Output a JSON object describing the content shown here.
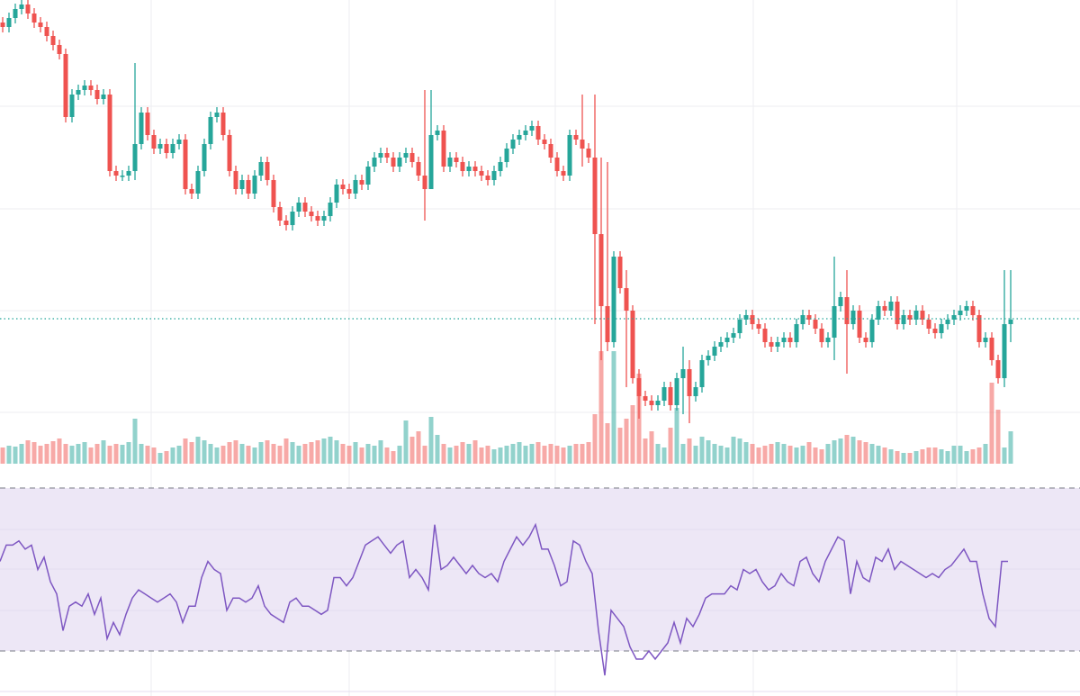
{
  "chart_data": {
    "type": "candlestick",
    "title": "",
    "colors": {
      "up": "#26a69a",
      "down": "#ef5350",
      "rsi_line": "#7e57c2",
      "rsi_band": "#ede7f6",
      "grid": "#eeeef2",
      "last_price_line": "#26a69a"
    },
    "price_range": [
      0,
      100
    ],
    "wick_pad": 1.2,
    "close": [
      94,
      96,
      98,
      99,
      97,
      95,
      94,
      92,
      90,
      88,
      74,
      79,
      80,
      81,
      80,
      78,
      79,
      62,
      61,
      61,
      62,
      68,
      75,
      70,
      67,
      68,
      66,
      68,
      69,
      58,
      57,
      62,
      68,
      74,
      75,
      70,
      62,
      58,
      60,
      57,
      61,
      64,
      60,
      54,
      51,
      50,
      53,
      55,
      53,
      52,
      51,
      52,
      55,
      59,
      58,
      57,
      60,
      59,
      63,
      65,
      66,
      65,
      63,
      65,
      66,
      64,
      61,
      58,
      70,
      71,
      63,
      65,
      64,
      62,
      63,
      62,
      61,
      60,
      62,
      64,
      67,
      69,
      70,
      71,
      72,
      69,
      68,
      65,
      62,
      61,
      70,
      69,
      67,
      65,
      48,
      32,
      24,
      43,
      36,
      31,
      16,
      12,
      11,
      10,
      11,
      14,
      10,
      16,
      18,
      12,
      14,
      20,
      21,
      23,
      24,
      25,
      26,
      29,
      30,
      28,
      27,
      24,
      23,
      24,
      25,
      24,
      28,
      30,
      29,
      27,
      24,
      25,
      32,
      34,
      28,
      31,
      25,
      24,
      29,
      32,
      31,
      33,
      28,
      30,
      29,
      31,
      29,
      27,
      26,
      28,
      29,
      30,
      31,
      32,
      30,
      24,
      25,
      20,
      16,
      28,
      29
    ],
    "big_wicks": [
      {
        "i": 21,
        "high": 86,
        "low": 60
      },
      {
        "i": 67,
        "high": 80,
        "low": 51
      },
      {
        "i": 68,
        "high": 80,
        "low": 65
      },
      {
        "i": 92,
        "high": 79,
        "low": 63
      },
      {
        "i": 94,
        "high": 79,
        "low": 28
      },
      {
        "i": 95,
        "high": 65,
        "low": 20
      },
      {
        "i": 96,
        "high": 64,
        "low": 22
      },
      {
        "i": 99,
        "high": 40,
        "low": 14
      },
      {
        "i": 101,
        "high": 18,
        "low": 7
      },
      {
        "i": 108,
        "high": 23,
        "low": 8
      },
      {
        "i": 109,
        "high": 20,
        "low": 6
      },
      {
        "i": 132,
        "high": 43,
        "low": 20
      },
      {
        "i": 134,
        "high": 40,
        "low": 17
      },
      {
        "i": 159,
        "high": 40,
        "low": 14
      },
      {
        "i": 160,
        "high": 40,
        "low": 24
      }
    ],
    "volume": [
      18,
      20,
      19,
      22,
      26,
      24,
      20,
      22,
      25,
      28,
      22,
      20,
      22,
      24,
      18,
      22,
      26,
      20,
      22,
      21,
      24,
      50,
      22,
      20,
      18,
      12,
      14,
      18,
      20,
      28,
      24,
      30,
      26,
      22,
      18,
      20,
      24,
      26,
      22,
      20,
      18,
      24,
      26,
      22,
      20,
      28,
      24,
      20,
      22,
      24,
      26,
      28,
      30,
      26,
      22,
      20,
      24,
      18,
      22,
      20,
      26,
      18,
      14,
      20,
      48,
      30,
      36,
      20,
      52,
      32,
      22,
      18,
      20,
      24,
      22,
      26,
      18,
      20,
      16,
      18,
      20,
      22,
      24,
      20,
      22,
      24,
      20,
      22,
      20,
      18,
      20,
      22,
      22,
      24,
      55,
      125,
      45,
      125,
      40,
      50,
      65,
      100,
      28,
      36,
      22,
      18,
      40,
      62,
      22,
      28,
      20,
      30,
      26,
      22,
      20,
      18,
      30,
      28,
      24,
      22,
      18,
      20,
      22,
      24,
      22,
      20,
      18,
      20,
      24,
      18,
      16,
      22,
      26,
      28,
      32,
      30,
      26,
      24,
      22,
      20,
      18,
      16,
      14,
      12,
      12,
      14,
      16,
      18,
      18,
      16,
      14,
      20,
      20,
      14,
      16,
      18,
      22,
      90,
      60,
      18,
      36
    ],
    "rsi": {
      "upper": 70,
      "lower": 30,
      "range": [
        18,
        75
      ],
      "values": [
        52,
        56,
        56,
        57,
        55,
        56,
        50,
        53,
        47,
        44,
        35,
        41,
        42,
        41,
        44,
        39,
        43,
        33,
        37,
        34,
        39,
        43,
        45,
        44,
        43,
        42,
        43,
        44,
        42,
        37,
        41,
        41,
        48,
        52,
        50,
        49,
        40,
        43,
        43,
        42,
        43,
        46,
        41,
        39,
        38,
        37,
        42,
        43,
        41,
        41,
        40,
        39,
        40,
        48,
        48,
        46,
        48,
        52,
        56,
        57,
        58,
        56,
        54,
        56,
        57,
        48,
        50,
        48,
        45,
        61,
        50,
        51,
        53,
        51,
        49,
        51,
        49,
        48,
        49,
        47,
        52,
        55,
        58,
        56,
        58,
        61,
        55,
        55,
        51,
        46,
        47,
        57,
        56,
        52,
        49,
        35,
        24,
        40,
        38,
        36,
        31,
        28,
        28,
        30,
        28,
        30,
        32,
        37,
        32,
        38,
        36,
        39,
        43,
        44,
        44,
        44,
        46,
        45,
        50,
        49,
        50,
        47,
        45,
        46,
        49,
        47,
        46,
        52,
        53,
        49,
        47,
        52,
        55,
        58,
        57,
        44,
        52,
        48,
        47,
        53,
        52,
        55,
        50,
        52,
        51,
        50,
        49,
        48,
        49,
        48,
        50,
        51,
        53,
        55,
        52,
        52,
        44,
        38,
        36,
        52,
        52
      ]
    },
    "last_price": 29.2
  }
}
